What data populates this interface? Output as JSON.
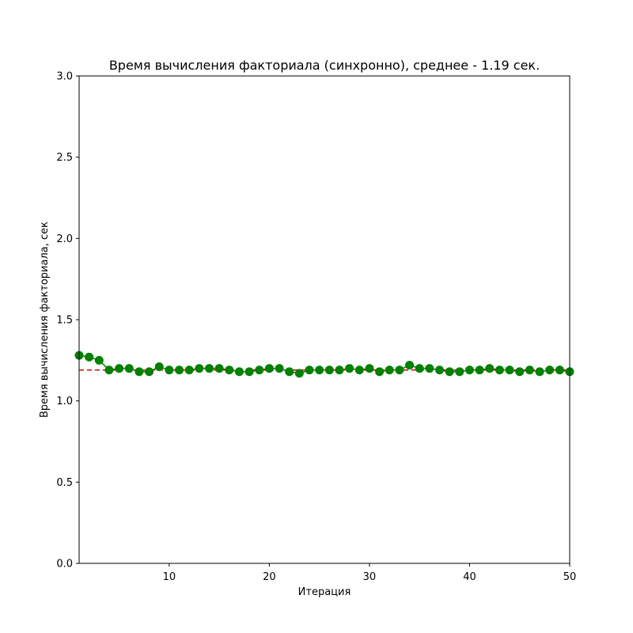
{
  "chart_data": {
    "type": "line",
    "title": "Время вычисления факториала (синхронно), среднее - 1.19 сек.",
    "xlabel": "Итерация",
    "ylabel": "Время вычисления факториала, сек",
    "xlim": [
      1,
      50
    ],
    "ylim": [
      0.0,
      3.0
    ],
    "x_ticks": [
      10,
      20,
      30,
      40,
      50
    ],
    "y_ticks": [
      "0.0",
      "0.5",
      "1.0",
      "1.5",
      "2.0",
      "2.5",
      "3.0"
    ],
    "grid": false,
    "colors": {
      "series": "#008000",
      "mean": "#cc0000"
    },
    "mean_line": {
      "value": 1.19,
      "style": "dashed"
    },
    "series": [
      {
        "x": [
          1,
          2,
          3,
          4,
          5,
          6,
          7,
          8,
          9,
          10,
          11,
          12,
          13,
          14,
          15,
          16,
          17,
          18,
          19,
          20,
          21,
          22,
          23,
          24,
          25,
          26,
          27,
          28,
          29,
          30,
          31,
          32,
          33,
          34,
          35,
          36,
          37,
          38,
          39,
          40,
          41,
          42,
          43,
          44,
          45,
          46,
          47,
          48,
          49,
          50
        ],
        "values": [
          1.28,
          1.27,
          1.25,
          1.19,
          1.2,
          1.2,
          1.18,
          1.18,
          1.21,
          1.19,
          1.19,
          1.19,
          1.2,
          1.2,
          1.2,
          1.19,
          1.18,
          1.18,
          1.19,
          1.2,
          1.2,
          1.18,
          1.17,
          1.19,
          1.19,
          1.19,
          1.19,
          1.2,
          1.19,
          1.2,
          1.18,
          1.19,
          1.19,
          1.22,
          1.2,
          1.2,
          1.19,
          1.18,
          1.18,
          1.19,
          1.19,
          1.2,
          1.19,
          1.19,
          1.18,
          1.19,
          1.18,
          1.19,
          1.19,
          1.18
        ]
      }
    ]
  }
}
